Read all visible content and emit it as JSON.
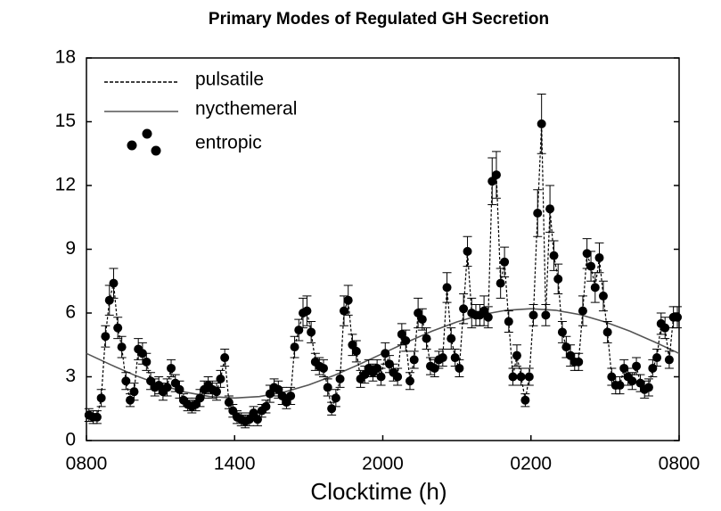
{
  "chart_data": {
    "type": "scatter",
    "title": "Primary Modes of Regulated GH Secretion",
    "xlabel": "Clocktime (h)",
    "xlim": [
      0,
      24
    ],
    "xticks": [
      {
        "value": 0,
        "label": "0800"
      },
      {
        "value": 6,
        "label": "1400"
      },
      {
        "value": 12,
        "label": "2000"
      },
      {
        "value": 18,
        "label": "0200"
      },
      {
        "value": 24,
        "label": "0800"
      }
    ],
    "ylim": [
      0,
      18
    ],
    "yticks": [
      0,
      3,
      6,
      9,
      12,
      15,
      18
    ],
    "legend": "upper left",
    "series": [
      {
        "name": "pulsatile",
        "color": "#000000",
        "dash": "dashed"
      },
      {
        "name": "nycthemeral",
        "color": "#555555",
        "x": [
          0,
          1,
          2,
          3,
          4,
          5,
          6,
          7,
          8,
          9,
          10,
          11,
          12,
          13,
          14,
          15,
          16,
          17,
          18,
          19,
          20,
          21,
          22,
          23,
          24
        ],
        "values": [
          4.1,
          3.56,
          3.05,
          2.62,
          2.28,
          2.07,
          2.0,
          2.07,
          2.28,
          2.62,
          3.05,
          3.56,
          4.1,
          4.64,
          5.15,
          5.58,
          5.92,
          6.13,
          6.2,
          6.13,
          5.92,
          5.58,
          5.15,
          4.64,
          4.1
        ]
      },
      {
        "name": "entropic",
        "color": "#000000",
        "x": [
          0.1,
          0.27,
          0.43,
          0.6,
          0.77,
          0.93,
          1.1,
          1.27,
          1.43,
          1.6,
          1.77,
          1.93,
          2.1,
          2.27,
          2.43,
          2.6,
          2.77,
          2.93,
          3.1,
          3.27,
          3.43,
          3.6,
          3.77,
          3.93,
          4.1,
          4.27,
          4.43,
          4.6,
          4.77,
          4.93,
          5.1,
          5.27,
          5.43,
          5.6,
          5.77,
          5.93,
          6.1,
          6.27,
          6.43,
          6.6,
          6.77,
          6.93,
          7.1,
          7.27,
          7.43,
          7.6,
          7.77,
          7.93,
          8.1,
          8.27,
          8.43,
          8.6,
          8.77,
          8.93,
          9.1,
          9.27,
          9.43,
          9.6,
          9.77,
          9.93,
          10.1,
          10.27,
          10.43,
          10.6,
          10.77,
          10.93,
          11.1,
          11.27,
          11.43,
          11.6,
          11.77,
          11.93,
          12.1,
          12.27,
          12.43,
          12.6,
          12.77,
          12.93,
          13.1,
          13.27,
          13.43,
          13.6,
          13.77,
          13.93,
          14.1,
          14.27,
          14.43,
          14.6,
          14.77,
          14.93,
          15.1,
          15.27,
          15.43,
          15.6,
          15.77,
          15.93,
          16.1,
          16.27,
          16.43,
          16.6,
          16.77,
          16.93,
          17.1,
          17.27,
          17.43,
          17.6,
          17.77,
          17.93,
          18.1,
          18.27,
          18.43,
          18.6,
          18.77,
          18.93,
          19.1,
          19.27,
          19.43,
          19.6,
          19.77,
          19.93,
          20.1,
          20.27,
          20.43,
          20.6,
          20.77,
          20.93,
          21.1,
          21.27,
          21.43,
          21.6,
          21.77,
          21.93,
          22.1,
          22.27,
          22.43,
          22.6,
          22.77,
          22.93,
          23.1,
          23.27,
          23.43,
          23.6,
          23.77,
          23.93
        ],
        "values": [
          1.2,
          1.1,
          1.1,
          2.0,
          4.9,
          6.6,
          7.4,
          5.3,
          4.4,
          2.8,
          1.9,
          2.3,
          4.3,
          4.1,
          3.7,
          2.8,
          2.5,
          2.6,
          2.3,
          2.5,
          3.4,
          2.7,
          2.4,
          1.9,
          1.7,
          1.6,
          1.7,
          2.0,
          2.4,
          2.6,
          2.4,
          2.3,
          2.9,
          3.9,
          1.8,
          1.4,
          1.1,
          1.0,
          0.9,
          1.0,
          1.3,
          1.0,
          1.4,
          1.6,
          2.2,
          2.5,
          2.4,
          2.1,
          1.8,
          2.1,
          4.4,
          5.2,
          6.0,
          6.1,
          5.1,
          3.7,
          3.5,
          3.4,
          2.5,
          1.5,
          2.0,
          2.9,
          6.1,
          6.6,
          4.5,
          4.2,
          2.9,
          3.1,
          3.4,
          3.2,
          3.4,
          3.0,
          4.1,
          3.6,
          3.2,
          3.0,
          5.0,
          4.7,
          2.8,
          3.8,
          6.0,
          5.7,
          4.8,
          3.5,
          3.4,
          3.8,
          3.9,
          7.2,
          4.8,
          3.9,
          3.4,
          6.2,
          8.9,
          6.0,
          5.9,
          5.9,
          6.1,
          5.8,
          12.2,
          12.5,
          7.4,
          8.4,
          5.6,
          3.0,
          4.0,
          3.0,
          1.9,
          3.0,
          5.9,
          10.7,
          14.9,
          5.9,
          10.9,
          8.7,
          7.6,
          5.1,
          4.4,
          4.0,
          3.7,
          3.7,
          6.1,
          8.8,
          8.2,
          7.2,
          8.6,
          6.8,
          5.1,
          3.0,
          2.6,
          2.6,
          3.4,
          3.0,
          2.8,
          3.5,
          2.7,
          2.4,
          2.5,
          3.4,
          3.9,
          5.5,
          5.3,
          3.8,
          5.8,
          5.8
        ],
        "errors": [
          0.3,
          0.3,
          0.3,
          0.4,
          0.5,
          0.7,
          0.7,
          0.5,
          0.5,
          0.4,
          0.3,
          0.4,
          0.5,
          0.5,
          0.4,
          0.4,
          0.4,
          0.4,
          0.4,
          0.4,
          0.4,
          0.4,
          0.4,
          0.3,
          0.3,
          0.3,
          0.3,
          0.4,
          0.4,
          0.4,
          0.4,
          0.4,
          0.4,
          0.4,
          0.3,
          0.3,
          0.3,
          0.3,
          0.3,
          0.3,
          0.3,
          0.3,
          0.3,
          0.3,
          0.4,
          0.4,
          0.4,
          0.4,
          0.3,
          0.4,
          0.5,
          0.5,
          0.7,
          0.7,
          0.5,
          0.4,
          0.4,
          0.4,
          0.4,
          0.3,
          0.4,
          0.4,
          0.7,
          0.7,
          0.5,
          0.5,
          0.4,
          0.4,
          0.4,
          0.4,
          0.4,
          0.4,
          0.5,
          0.4,
          0.4,
          0.4,
          0.5,
          0.5,
          0.4,
          0.4,
          0.7,
          0.5,
          0.5,
          0.4,
          0.4,
          0.4,
          0.4,
          0.7,
          0.5,
          0.4,
          0.4,
          0.7,
          0.7,
          0.7,
          0.5,
          0.5,
          0.7,
          0.5,
          1.1,
          1.1,
          0.7,
          0.7,
          0.5,
          0.4,
          0.5,
          0.4,
          0.3,
          0.4,
          0.5,
          1.1,
          1.4,
          0.5,
          1.1,
          0.7,
          0.7,
          0.5,
          0.5,
          0.5,
          0.4,
          0.4,
          0.7,
          0.7,
          0.7,
          0.7,
          0.7,
          0.7,
          0.5,
          0.4,
          0.4,
          0.4,
          0.4,
          0.4,
          0.4,
          0.4,
          0.4,
          0.4,
          0.4,
          0.4,
          0.4,
          0.5,
          0.5,
          0.4,
          0.5,
          0.5
        ]
      }
    ]
  }
}
